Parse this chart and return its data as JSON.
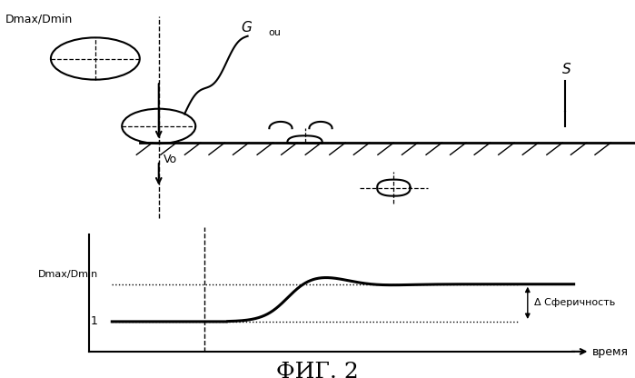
{
  "title": "ФИГ. 2",
  "ylabel_top": "Dmax/Dmin",
  "ylabel_bottom": "Dmax/Dmin",
  "xlabel": "время",
  "label_1": "1",
  "label_Vo": "Vo",
  "label_Gou": "G",
  "label_Gou_sub": "ou",
  "label_S": "S",
  "label_delta": "Δ Сферичность",
  "bg_color": "#ffffff",
  "line_color": "#000000"
}
